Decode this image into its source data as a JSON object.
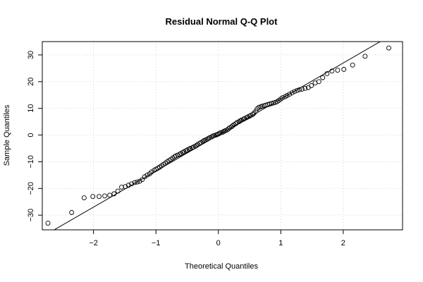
{
  "chart_data": {
    "type": "scatter",
    "title": "Residual Normal Q-Q Plot",
    "xlabel": "Theoretical Quantiles",
    "ylabel": "Sample Quantiles",
    "xlim": [
      -2.82,
      2.95
    ],
    "ylim": [
      -35.5,
      35
    ],
    "xticks": [
      -2,
      -1,
      0,
      1,
      2
    ],
    "yticks": [
      -30,
      -20,
      -10,
      0,
      10,
      20,
      30
    ],
    "grid": true,
    "reference_line": {
      "intercept": 0,
      "slope": 13.5
    },
    "points": {
      "x": [
        -2.73,
        -2.35,
        -2.15,
        -2.01,
        -1.91,
        -1.82,
        -1.74,
        -1.67,
        -1.61,
        -1.55,
        -1.49,
        -1.44,
        -1.39,
        -1.34,
        -1.3,
        -1.26,
        -1.22,
        -1.18,
        -1.14,
        -1.1,
        -1.07,
        -1.03,
        -1.0,
        -0.97,
        -0.94,
        -0.91,
        -0.88,
        -0.85,
        -0.82,
        -0.79,
        -0.76,
        -0.73,
        -0.7,
        -0.68,
        -0.65,
        -0.62,
        -0.6,
        -0.57,
        -0.55,
        -0.52,
        -0.5,
        -0.47,
        -0.45,
        -0.42,
        -0.4,
        -0.37,
        -0.35,
        -0.33,
        -0.3,
        -0.28,
        -0.25,
        -0.23,
        -0.21,
        -0.18,
        -0.16,
        -0.14,
        -0.11,
        -0.09,
        -0.07,
        -0.04,
        -0.02,
        0.0,
        0.02,
        0.04,
        0.07,
        0.09,
        0.11,
        0.14,
        0.16,
        0.18,
        0.21,
        0.23,
        0.25,
        0.28,
        0.3,
        0.33,
        0.35,
        0.37,
        0.4,
        0.42,
        0.45,
        0.47,
        0.5,
        0.52,
        0.55,
        0.57,
        0.6,
        0.62,
        0.65,
        0.68,
        0.7,
        0.73,
        0.76,
        0.79,
        0.82,
        0.85,
        0.88,
        0.91,
        0.94,
        0.97,
        1.0,
        1.03,
        1.07,
        1.1,
        1.14,
        1.18,
        1.22,
        1.26,
        1.3,
        1.34,
        1.39,
        1.44,
        1.49,
        1.55,
        1.61,
        1.67,
        1.74,
        1.82,
        1.91,
        2.01,
        2.15,
        2.35,
        2.73
      ],
      "y": [
        -33.0,
        -29.0,
        -23.5,
        -23.0,
        -23.0,
        -22.8,
        -22.5,
        -22.0,
        -21.0,
        -19.5,
        -19.3,
        -18.8,
        -18.3,
        -17.8,
        -17.6,
        -17.3,
        -16.7,
        -15.6,
        -15.0,
        -14.5,
        -13.8,
        -13.2,
        -12.8,
        -12.4,
        -12.0,
        -11.5,
        -11.0,
        -10.5,
        -10.0,
        -9.5,
        -9.1,
        -8.6,
        -8.1,
        -7.8,
        -7.5,
        -7.2,
        -6.9,
        -6.5,
        -6.2,
        -5.9,
        -5.6,
        -5.3,
        -5.0,
        -4.8,
        -4.5,
        -4.2,
        -3.9,
        -3.5,
        -3.1,
        -2.8,
        -2.4,
        -2.1,
        -1.9,
        -1.6,
        -1.3,
        -1.0,
        -0.7,
        -0.4,
        -0.2,
        0.0,
        0.2,
        0.4,
        0.7,
        0.9,
        1.1,
        1.4,
        1.6,
        1.9,
        2.3,
        2.7,
        3.1,
        3.5,
        3.9,
        4.3,
        4.7,
        5.0,
        5.3,
        5.6,
        5.9,
        6.2,
        6.5,
        6.8,
        7.1,
        7.4,
        7.7,
        8.2,
        8.9,
        9.8,
        10.4,
        10.6,
        10.8,
        11.0,
        11.2,
        11.4,
        11.6,
        11.8,
        12.0,
        12.2,
        12.5,
        13.0,
        13.5,
        14.0,
        14.4,
        14.8,
        15.3,
        15.8,
        16.3,
        16.7,
        17.0,
        17.2,
        17.5,
        17.8,
        18.5,
        19.5,
        20.0,
        21.5,
        23.0,
        24.0,
        24.3,
        24.6,
        26.2,
        29.5,
        32.6
      ]
    }
  }
}
